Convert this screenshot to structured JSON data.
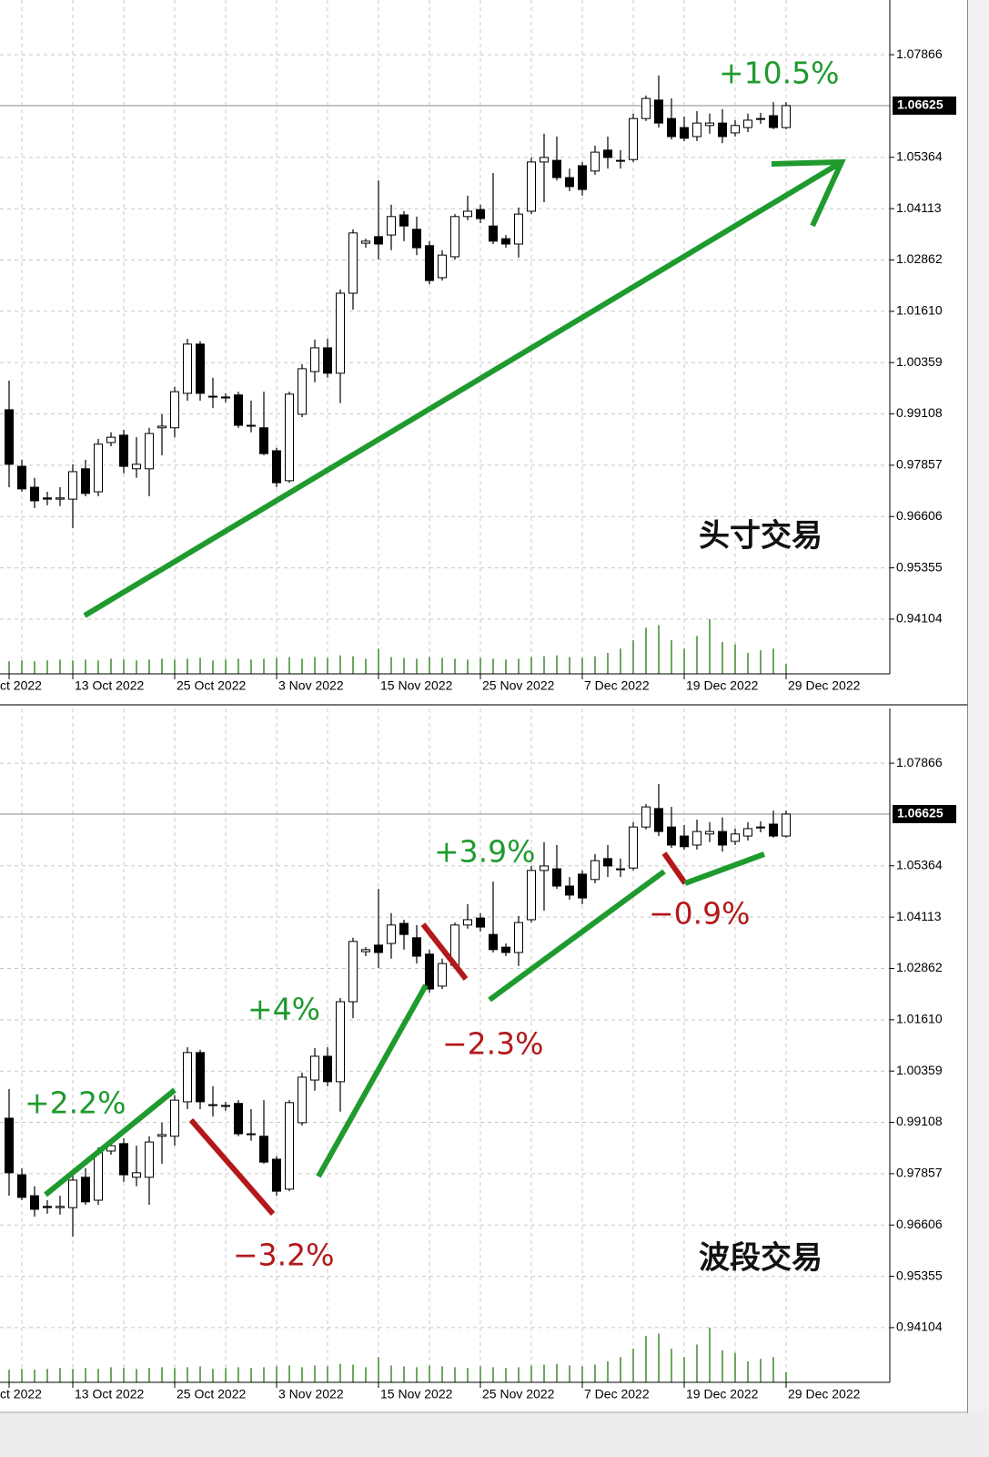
{
  "chart_data": {
    "type": "candlestick",
    "categories": [
      "ct 2022",
      null,
      null,
      null,
      null,
      "13 Oct 2022",
      null,
      null,
      null,
      null,
      null,
      null,
      null,
      "25 Oct 2022",
      null,
      null,
      null,
      null,
      null,
      null,
      null,
      "3 Nov 2022",
      null,
      null,
      null,
      null,
      null,
      null,
      null,
      "15 Nov 2022",
      null,
      null,
      null,
      null,
      null,
      null,
      null,
      "25 Nov 2022",
      null,
      null,
      null,
      null,
      null,
      null,
      null,
      "7 Dec 2022",
      null,
      null,
      null,
      null,
      null,
      null,
      null,
      "19 Dec 2022",
      null,
      null,
      null,
      null,
      null,
      null,
      null,
      "29 Dec 2022"
    ],
    "open": [
      0.9921,
      0.9783,
      0.9732,
      0.9706,
      0.9703,
      0.9703,
      0.9777,
      0.9721,
      0.9841,
      0.9859,
      0.9777,
      0.9777,
      0.9877,
      0.9877,
      0.9961,
      1.0081,
      0.9954,
      0.995,
      0.9957,
      0.9883,
      0.9877,
      0.9821,
      0.9748,
      0.991,
      1.0014,
      1.0072,
      1.001,
      1.0205,
      1.0327,
      1.0343,
      1.0347,
      1.0396,
      1.0361,
      1.0321,
      1.0243,
      1.0294,
      1.0392,
      1.0409,
      1.0369,
      1.0338,
      1.0325,
      1.0405,
      1.0525,
      1.0529,
      1.0487,
      1.0516,
      1.0503,
      1.0554,
      1.0529,
      1.0531,
      1.0631,
      1.0676,
      1.0631,
      1.0609,
      1.0587,
      1.0614,
      1.062,
      1.0596,
      1.0609,
      1.0629,
      1.0638,
      1.0609
    ],
    "high": [
      0.9992,
      0.9799,
      0.9755,
      0.9721,
      0.9732,
      0.9788,
      0.9799,
      0.985,
      0.9866,
      0.9872,
      0.9854,
      0.9877,
      0.991,
      0.9977,
      1.0094,
      1.0088,
      0.9999,
      0.9961,
      0.9965,
      0.9943,
      0.9965,
      0.9828,
      0.9965,
      1.0032,
      1.0092,
      1.0094,
      1.0214,
      1.0361,
      1.0338,
      1.048,
      1.0421,
      1.0405,
      1.0392,
      1.0332,
      1.031,
      1.0398,
      1.0443,
      1.0421,
      1.0498,
      1.0347,
      1.0414,
      1.0536,
      1.0594,
      1.0587,
      1.0509,
      1.0525,
      1.0565,
      1.0587,
      1.0554,
      1.0643,
      1.0687,
      1.0736,
      1.068,
      1.0636,
      1.0649,
      1.0643,
      1.0654,
      1.0627,
      1.0643,
      1.0645,
      1.0671,
      1.0671
    ],
    "low": [
      0.9732,
      0.9721,
      0.9681,
      0.9688,
      0.9686,
      0.9632,
      0.971,
      0.971,
      0.9832,
      0.9766,
      0.9755,
      0.971,
      0.981,
      0.9854,
      0.9943,
      0.9943,
      0.9925,
      0.9939,
      0.9877,
      0.9866,
      0.981,
      0.9732,
      0.9743,
      0.9903,
      0.9988,
      0.9999,
      0.9937,
      1.0165,
      1.0316,
      1.0287,
      1.031,
      1.0332,
      1.0298,
      1.0227,
      1.0236,
      1.0287,
      1.0383,
      1.0376,
      1.0325,
      1.0316,
      1.0292,
      1.0398,
      1.0427,
      1.048,
      1.0454,
      1.0443,
      1.0494,
      1.0509,
      1.0509,
      1.0525,
      1.0625,
      1.0609,
      1.058,
      1.0576,
      1.0576,
      1.0594,
      1.0571,
      1.0587,
      1.0598,
      1.0618,
      1.0605,
      1.0605
    ],
    "close": [
      0.9788,
      0.9728,
      0.9699,
      0.9703,
      0.9706,
      0.977,
      0.9717,
      0.9837,
      0.9854,
      0.9783,
      0.9788,
      0.9863,
      0.9881,
      0.9965,
      1.0081,
      0.9961,
      0.9952,
      0.9952,
      0.9883,
      0.9881,
      0.9814,
      0.9743,
      0.9959,
      1.0021,
      1.0072,
      1.001,
      1.0205,
      1.0352,
      1.0332,
      1.0325,
      1.0392,
      1.0369,
      1.0316,
      1.0236,
      1.0298,
      1.0392,
      1.0405,
      1.0387,
      1.0332,
      1.0325,
      1.0398,
      1.0525,
      1.0536,
      1.0487,
      1.0465,
      1.0458,
      1.0549,
      1.0536,
      1.0527,
      1.0631,
      1.068,
      1.062,
      1.0587,
      1.0583,
      1.062,
      1.062,
      1.0587,
      1.0614,
      1.0627,
      1.0631,
      1.0609,
      1.06625
    ],
    "volume": [
      15,
      16,
      15,
      16,
      17,
      16,
      17,
      16,
      18,
      17,
      16,
      17,
      18,
      17,
      18,
      19,
      16,
      17,
      18,
      17,
      18,
      19,
      20,
      18,
      20,
      19,
      22,
      21,
      18,
      30,
      20,
      19,
      18,
      20,
      19,
      18,
      17,
      19,
      18,
      17,
      18,
      20,
      21,
      22,
      20,
      19,
      21,
      25,
      30,
      40,
      55,
      58,
      40,
      30,
      45,
      65,
      38,
      35,
      25,
      28,
      30,
      12
    ],
    "up_color": "#ffffff",
    "down_color": "#000000",
    "volume_color": "#3a8a2a",
    "ylim": [
      0.9277,
      1.092
    ],
    "yticks": [
      1.07866,
      1.05364,
      1.04113,
      1.02862,
      {
        "value": 1.0161,
        "label": "1.01610"
      },
      1.00359,
      0.99108,
      0.97857,
      0.96606,
      0.95355,
      0.94104
    ],
    "grid": true,
    "panels": [
      {
        "label": "头寸交易",
        "annotations": [
          "+10.5%"
        ]
      },
      {
        "label": "波段交易",
        "annotations": [
          "+2.2%",
          "−3.2%",
          "+4%",
          "−2.3%",
          "+3.9%",
          "−0.9%"
        ]
      }
    ]
  }
}
